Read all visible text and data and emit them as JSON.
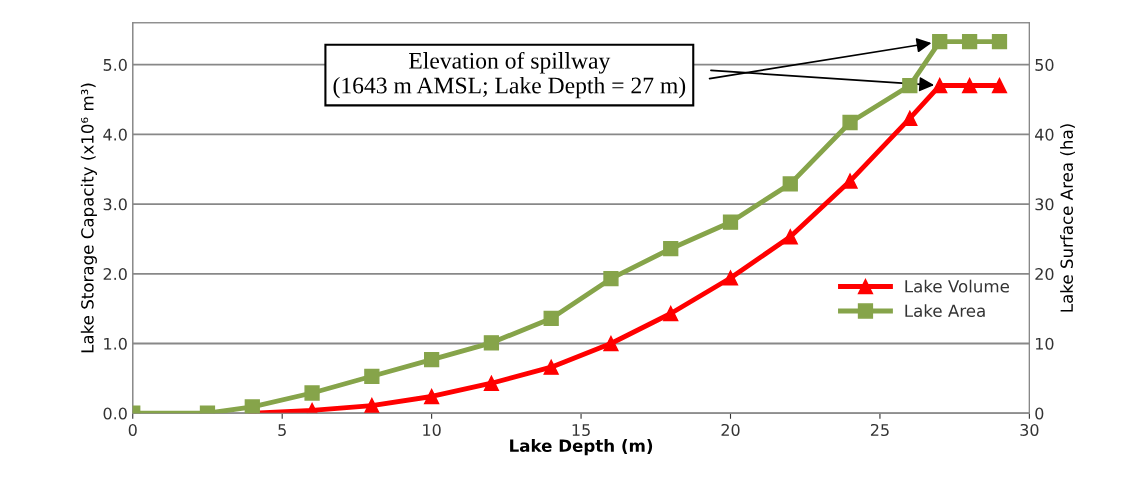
{
  "chart_data": {
    "type": "line",
    "xlabel": "Lake Depth (m)",
    "ylabel": "Lake Storage Capacity (x10⁶ m³)",
    "y2label": "Lake Surface Area (ha)",
    "series": [
      {
        "name": "Lake Volume",
        "color": "#ff0000",
        "marker": "triangle",
        "x": [
          4,
          6,
          8,
          10,
          12,
          14,
          16,
          18,
          20,
          22,
          24,
          26,
          27,
          28,
          29
        ],
        "values": [
          0.0,
          0.04,
          0.11,
          0.24,
          0.43,
          0.66,
          1.0,
          1.43,
          1.94,
          2.53,
          3.33,
          4.23,
          4.7,
          4.7,
          4.7
        ]
      },
      {
        "name": "Lake Area",
        "color": "#86a44a",
        "marker": "square",
        "axis": "y2",
        "x": [
          0,
          2.5,
          4,
          6,
          8,
          10,
          12,
          14,
          16,
          18,
          20,
          22,
          24,
          26,
          27,
          28,
          29
        ],
        "values": [
          0,
          0,
          0.9,
          2.9,
          5.3,
          7.7,
          10.1,
          13.6,
          19.3,
          23.6,
          27.4,
          32.9,
          41.7,
          47,
          53.3,
          53.3,
          53.3
        ]
      }
    ],
    "annotations": [
      {
        "text": "Elevation of spillway\n(1643 m AMSL; Lake Depth = 27 m)",
        "x": 27,
        "y": 4.7
      }
    ],
    "xlim": [
      0,
      30
    ],
    "xticks": [
      0,
      5,
      10,
      15,
      20,
      25,
      30
    ],
    "ylim": [
      0,
      5.6
    ],
    "yticks": [
      {
        "value": 0,
        "label": "0.0"
      },
      {
        "value": 1,
        "label": "1.0"
      },
      {
        "value": 2,
        "label": "2.0"
      },
      {
        "value": 3,
        "label": "3.0"
      },
      {
        "value": 4,
        "label": "4.0"
      },
      {
        "value": 5,
        "label": "5.0"
      }
    ],
    "y2lim": [
      0,
      56
    ],
    "y2ticks": [
      0,
      10,
      20,
      30,
      40,
      50
    ],
    "grid": "y",
    "legend": "right",
    "line_style": "solid"
  }
}
